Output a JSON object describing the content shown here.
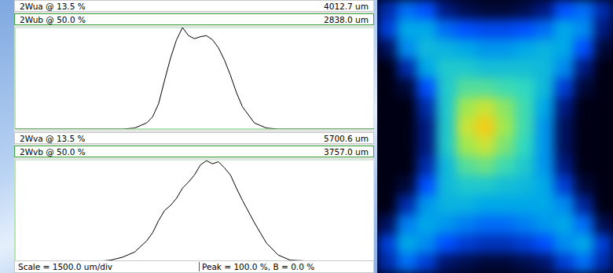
{
  "chart_data": [
    {
      "type": "line",
      "header_rows": [
        {
          "label": "2Wua @ 13.5 %",
          "value": "4012.7 um"
        },
        {
          "label": "2Wub @ 50.0 %",
          "value": "2838.0 um"
        }
      ],
      "x": [
        -7500,
        -5000,
        -3500,
        -3000,
        -2500,
        -2000,
        -1750,
        -1500,
        -1250,
        -1000,
        -750,
        -500,
        -250,
        0,
        250,
        500,
        750,
        1000,
        1250,
        1500,
        1750,
        2000,
        2500,
        3000,
        3500,
        5000,
        7500
      ],
      "values": [
        0,
        0,
        0,
        0,
        1,
        6,
        12,
        25,
        48,
        70,
        88,
        100,
        92,
        89,
        91,
        92,
        88,
        80,
        68,
        53,
        36,
        22,
        6,
        1,
        0,
        0,
        0
      ],
      "color": "#000000",
      "marker": "none",
      "line_style": "solid",
      "xlim": [
        -7500,
        7500
      ],
      "xticks": [
        -7500,
        -6000,
        -4500,
        -3000,
        -1500,
        0,
        1500,
        3000,
        4500,
        6000,
        7500
      ],
      "ylim": [
        0,
        100
      ],
      "yticks": [
        0,
        20,
        40,
        60,
        80,
        100
      ],
      "grid": true,
      "tick_labels": false
    },
    {
      "type": "line",
      "header_rows": [
        {
          "label": "2Wva @ 13.5 %",
          "value": "5700.6 um"
        },
        {
          "label": "2Wvb @ 50.0 %",
          "value": "3757.0 um"
        }
      ],
      "x": [
        -7500,
        -5000,
        -4000,
        -3500,
        -3000,
        -2500,
        -2000,
        -1750,
        -1500,
        -1250,
        -1000,
        -750,
        -500,
        -250,
        0,
        250,
        500,
        750,
        1000,
        1250,
        1500,
        1750,
        2000,
        2500,
        3000,
        3500,
        4000,
        5000,
        7500
      ],
      "values": [
        0,
        0,
        0,
        1,
        4,
        9,
        20,
        28,
        40,
        50,
        55,
        62,
        72,
        78,
        85,
        95,
        99,
        96,
        98,
        92,
        85,
        72,
        60,
        38,
        18,
        6,
        1,
        0,
        0
      ],
      "color": "#000000",
      "marker": "none",
      "line_style": "solid",
      "xlim": [
        -7500,
        7500
      ],
      "xticks": [
        -7500,
        -6000,
        -4500,
        -3000,
        -1500,
        0,
        1500,
        3000,
        4500,
        6000,
        7500
      ],
      "ylim": [
        0,
        100
      ],
      "yticks": [
        0,
        20,
        40,
        60,
        80,
        100
      ],
      "grid": true,
      "tick_labels": false
    },
    {
      "type": "heatmap",
      "xlim": [
        0,
        12
      ],
      "ylim": [
        0,
        14
      ],
      "tick_labels": false,
      "color_range": [
        0,
        100
      ],
      "cells": [
        [
          20,
          35,
          30,
          15,
          8,
          5,
          5,
          8,
          15,
          30,
          35,
          20
        ],
        [
          25,
          45,
          45,
          35,
          30,
          28,
          28,
          30,
          35,
          45,
          40,
          15
        ],
        [
          10,
          40,
          50,
          48,
          45,
          42,
          42,
          45,
          48,
          45,
          30,
          5
        ],
        [
          0,
          20,
          45,
          55,
          55,
          52,
          52,
          52,
          50,
          40,
          15,
          0
        ],
        [
          0,
          5,
          30,
          55,
          65,
          65,
          62,
          60,
          50,
          25,
          5,
          0
        ],
        [
          0,
          0,
          20,
          55,
          75,
          80,
          72,
          62,
          45,
          15,
          0,
          0
        ],
        [
          0,
          0,
          15,
          55,
          80,
          88,
          75,
          62,
          42,
          10,
          0,
          0
        ],
        [
          0,
          0,
          15,
          55,
          75,
          80,
          70,
          60,
          42,
          10,
          0,
          0
        ],
        [
          0,
          0,
          20,
          50,
          65,
          68,
          62,
          55,
          42,
          15,
          0,
          0
        ],
        [
          0,
          5,
          30,
          50,
          55,
          55,
          52,
          50,
          45,
          25,
          5,
          0
        ],
        [
          0,
          20,
          42,
          48,
          48,
          45,
          45,
          45,
          45,
          40,
          18,
          0
        ],
        [
          10,
          38,
          45,
          42,
          38,
          35,
          35,
          38,
          42,
          45,
          35,
          8
        ],
        [
          25,
          45,
          40,
          30,
          25,
          22,
          22,
          25,
          30,
          40,
          45,
          25
        ],
        [
          20,
          35,
          25,
          12,
          8,
          5,
          5,
          8,
          12,
          25,
          35,
          20
        ]
      ]
    }
  ],
  "footer": [
    "Scale = 1500.0 um/div",
    "Peak = 100.0 %, B = 0.0 %"
  ]
}
